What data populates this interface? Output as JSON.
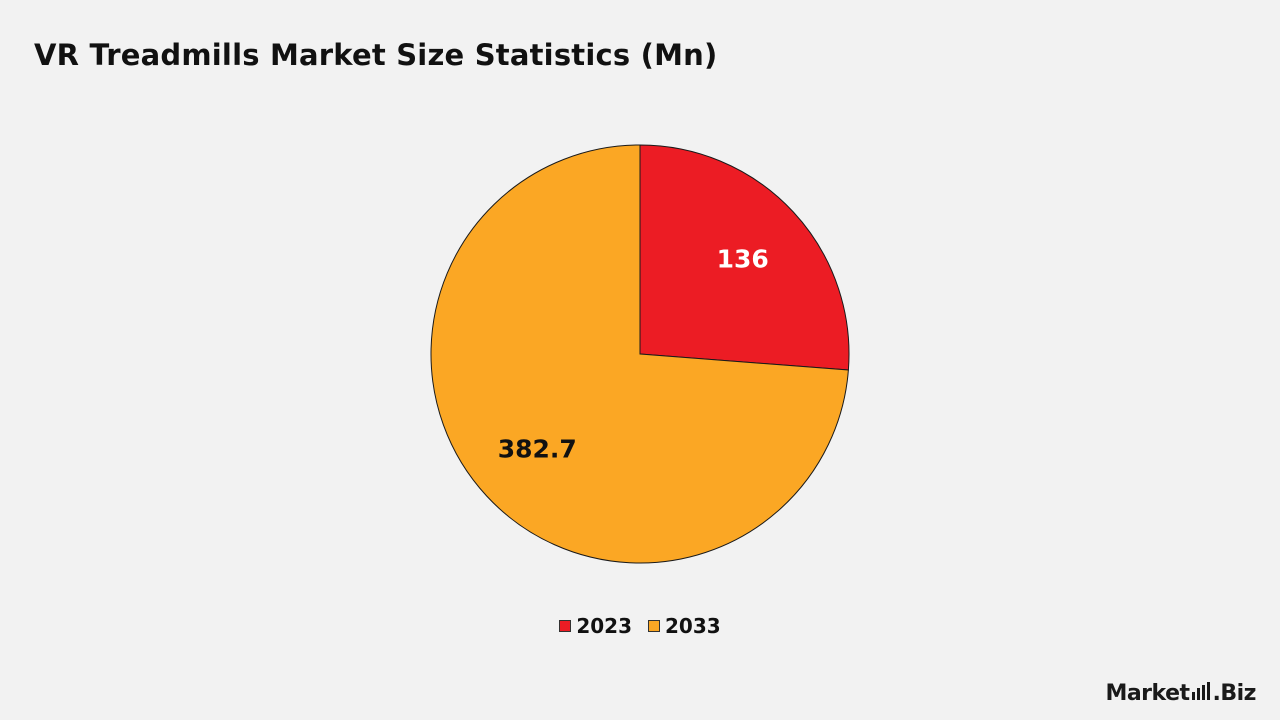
{
  "chart_data": {
    "type": "pie",
    "title": "VR Treadmills Market Size Statistics (Mn)",
    "categories": [
      "2023",
      "2033"
    ],
    "values": [
      136,
      382.7
    ],
    "value_labels": [
      "136",
      "382.7"
    ],
    "colors": [
      "#ec1c24",
      "#fba724"
    ],
    "label_colors": [
      "#ffffff",
      "#111111"
    ],
    "legend_position": "bottom"
  },
  "brand": {
    "logo_text": "Market.Biz"
  }
}
